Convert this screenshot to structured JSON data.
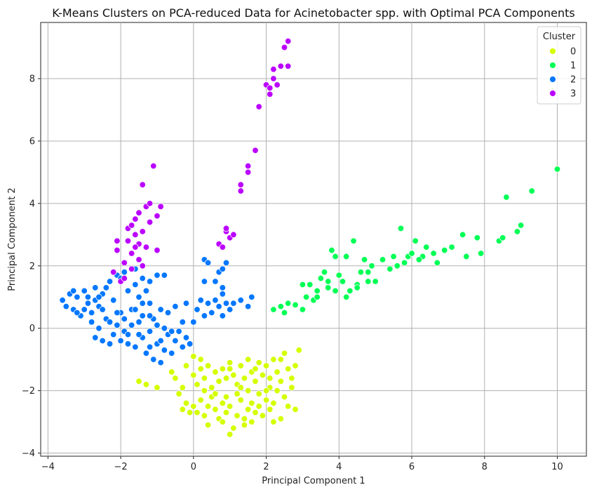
{
  "chart_data": {
    "type": "scatter",
    "title": "K-Means Clusters on PCA-reduced Data for Acinetobacter spp. with Optimal PCA Components",
    "xlabel": "Principal Component 1",
    "ylabel": "Principal Component 2",
    "xlim": [
      -4.2,
      10.8
    ],
    "ylim": [
      -4.1,
      9.8
    ],
    "xticks": [
      -4,
      -2,
      0,
      2,
      4,
      6,
      8,
      10
    ],
    "yticks": [
      -4,
      -2,
      0,
      2,
      4,
      6,
      8
    ],
    "grid": true,
    "legend": {
      "title": "Cluster",
      "placement": "top-right"
    },
    "series": [
      {
        "name": "0",
        "color": "#d4ff00",
        "points": [
          [
            -1.5,
            -1.7
          ],
          [
            -1.3,
            -1.8
          ],
          [
            -1.0,
            -1.9
          ],
          [
            -0.6,
            -1.4
          ],
          [
            -0.5,
            -1.6
          ],
          [
            -0.3,
            -1.9
          ],
          [
            -0.4,
            -2.1
          ],
          [
            -0.2,
            -2.4
          ],
          [
            -0.3,
            -2.6
          ],
          [
            -0.1,
            -2.7
          ],
          [
            0.0,
            -2.5
          ],
          [
            0.1,
            -2.7
          ],
          [
            0.2,
            -2.3
          ],
          [
            0.3,
            -2.8
          ],
          [
            0.4,
            -2.5
          ],
          [
            0.5,
            -2.2
          ],
          [
            0.6,
            -2.6
          ],
          [
            0.7,
            -2.9
          ],
          [
            0.8,
            -2.4
          ],
          [
            0.9,
            -2.7
          ],
          [
            1.0,
            -2.5
          ],
          [
            1.1,
            -3.2
          ],
          [
            1.0,
            -3.4
          ],
          [
            1.2,
            -2.8
          ],
          [
            1.3,
            -2.3
          ],
          [
            1.4,
            -2.9
          ],
          [
            1.5,
            -2.6
          ],
          [
            1.6,
            -2.4
          ],
          [
            1.7,
            -2.7
          ],
          [
            1.8,
            -2.5
          ],
          [
            1.9,
            -2.8
          ],
          [
            2.0,
            -2.3
          ],
          [
            2.1,
            -2.6
          ],
          [
            2.2,
            -2.4
          ],
          [
            2.4,
            -2.9
          ],
          [
            2.6,
            -2.5
          ],
          [
            2.8,
            -2.6
          ],
          [
            2.5,
            -2.2
          ],
          [
            2.3,
            -2.0
          ],
          [
            2.1,
            -1.9
          ],
          [
            0.0,
            -1.5
          ],
          [
            0.1,
            -1.8
          ],
          [
            0.2,
            -1.3
          ],
          [
            0.3,
            -1.6
          ],
          [
            0.4,
            -1.2
          ],
          [
            0.5,
            -1.9
          ],
          [
            0.6,
            -1.4
          ],
          [
            0.7,
            -1.7
          ],
          [
            0.8,
            -1.3
          ],
          [
            0.9,
            -1.6
          ],
          [
            1.0,
            -1.1
          ],
          [
            1.1,
            -1.5
          ],
          [
            1.2,
            -1.8
          ],
          [
            1.3,
            -1.2
          ],
          [
            1.4,
            -1.6
          ],
          [
            1.5,
            -1.0
          ],
          [
            1.6,
            -1.4
          ],
          [
            1.7,
            -1.7
          ],
          [
            1.8,
            -1.1
          ],
          [
            1.9,
            -1.5
          ],
          [
            2.0,
            -1.2
          ],
          [
            2.1,
            -1.6
          ],
          [
            2.2,
            -1.0
          ],
          [
            2.3,
            -1.4
          ],
          [
            2.4,
            -1.7
          ],
          [
            2.5,
            -0.8
          ],
          [
            2.6,
            -1.3
          ],
          [
            2.7,
            -1.6
          ],
          [
            2.9,
            -0.7
          ],
          [
            2.8,
            -1.2
          ],
          [
            0.3,
            -2.0
          ],
          [
            0.6,
            -2.1
          ],
          [
            0.9,
            -2.2
          ],
          [
            1.2,
            -2.1
          ],
          [
            1.5,
            -2.0
          ],
          [
            1.8,
            -2.1
          ],
          [
            2.0,
            -2.0
          ],
          [
            0.2,
            -1.0
          ],
          [
            0.0,
            -0.9
          ],
          [
            -0.2,
            -1.2
          ],
          [
            1.4,
            -3.1
          ],
          [
            1.6,
            -3.0
          ],
          [
            0.8,
            -3.0
          ],
          [
            0.4,
            -3.1
          ],
          [
            2.2,
            -3.0
          ],
          [
            2.7,
            -1.9
          ],
          [
            2.4,
            -1.0
          ],
          [
            1.0,
            -1.3
          ],
          [
            1.3,
            -1.9
          ],
          [
            1.7,
            -1.3
          ]
        ]
      },
      {
        "name": "1",
        "color": "#00ff55",
        "points": [
          [
            2.2,
            0.6
          ],
          [
            2.4,
            0.7
          ],
          [
            2.5,
            0.5
          ],
          [
            2.6,
            0.8
          ],
          [
            2.8,
            0.75
          ],
          [
            3.0,
            0.6
          ],
          [
            3.1,
            1.0
          ],
          [
            3.2,
            1.4
          ],
          [
            3.3,
            0.9
          ],
          [
            3.4,
            1.2
          ],
          [
            3.5,
            1.6
          ],
          [
            3.6,
            1.8
          ],
          [
            3.7,
            1.3
          ],
          [
            3.8,
            2.5
          ],
          [
            3.9,
            2.3
          ],
          [
            4.0,
            1.7
          ],
          [
            4.1,
            1.5
          ],
          [
            4.2,
            2.3
          ],
          [
            4.3,
            1.2
          ],
          [
            4.4,
            2.8
          ],
          [
            4.5,
            1.4
          ],
          [
            4.6,
            1.8
          ],
          [
            4.7,
            2.2
          ],
          [
            4.8,
            1.5
          ],
          [
            4.9,
            2.0
          ],
          [
            5.0,
            1.5
          ],
          [
            5.2,
            2.2
          ],
          [
            5.4,
            1.9
          ],
          [
            5.5,
            2.3
          ],
          [
            5.7,
            3.2
          ],
          [
            5.8,
            2.1
          ],
          [
            5.9,
            2.3
          ],
          [
            6.0,
            2.4
          ],
          [
            6.1,
            2.8
          ],
          [
            6.3,
            2.3
          ],
          [
            6.4,
            2.6
          ],
          [
            6.6,
            2.4
          ],
          [
            6.7,
            2.1
          ],
          [
            6.9,
            2.5
          ],
          [
            7.1,
            2.6
          ],
          [
            7.4,
            3.0
          ],
          [
            7.5,
            2.3
          ],
          [
            7.8,
            2.9
          ],
          [
            7.9,
            2.4
          ],
          [
            8.4,
            2.8
          ],
          [
            8.5,
            2.9
          ],
          [
            8.6,
            4.2
          ],
          [
            8.9,
            3.1
          ],
          [
            9.0,
            3.3
          ],
          [
            9.3,
            4.4
          ],
          [
            10.0,
            5.1
          ],
          [
            3.0,
            1.4
          ],
          [
            3.4,
            1.0
          ],
          [
            3.7,
            1.5
          ],
          [
            3.9,
            1.2
          ],
          [
            4.2,
            1.0
          ],
          [
            4.5,
            1.3
          ],
          [
            4.8,
            1.8
          ],
          [
            5.6,
            2.0
          ],
          [
            6.2,
            2.2
          ]
        ]
      },
      {
        "name": "2",
        "color": "#0077ff",
        "points": [
          [
            -3.6,
            0.9
          ],
          [
            -3.5,
            0.7
          ],
          [
            -3.4,
            1.1
          ],
          [
            -3.3,
            0.6
          ],
          [
            -3.2,
            1.0
          ],
          [
            -3.1,
            0.4
          ],
          [
            -3.0,
            1.2
          ],
          [
            -2.9,
            0.8
          ],
          [
            -2.8,
            0.5
          ],
          [
            -2.7,
            1.3
          ],
          [
            -2.6,
            0.7
          ],
          [
            -2.5,
            1.1
          ],
          [
            -2.4,
            0.3
          ],
          [
            -2.3,
            1.5
          ],
          [
            -2.2,
            0.9
          ],
          [
            -2.1,
            1.7
          ],
          [
            -2.0,
            0.5
          ],
          [
            -1.9,
            1.8
          ],
          [
            -1.8,
            1.2
          ],
          [
            -1.7,
            0.6
          ],
          [
            -1.6,
            1.4
          ],
          [
            -1.5,
            1.0
          ],
          [
            -1.4,
            0.4
          ],
          [
            -1.3,
            1.2
          ],
          [
            -1.2,
            0.8
          ],
          [
            -1.1,
            0.3
          ],
          [
            -1.0,
            1.7
          ],
          [
            -0.9,
            0.6
          ],
          [
            -0.8,
            0.0
          ],
          [
            -0.7,
            0.5
          ],
          [
            -3.0,
            0.6
          ],
          [
            -2.9,
            1.0
          ],
          [
            -2.8,
            0.2
          ],
          [
            -2.7,
            0.9
          ],
          [
            -2.6,
            0.0
          ],
          [
            -2.5,
            0.6
          ],
          [
            -2.4,
            1.3
          ],
          [
            -2.3,
            0.2
          ],
          [
            -2.2,
            -0.2
          ],
          [
            -2.1,
            0.5
          ],
          [
            -2.0,
            -0.4
          ],
          [
            -1.9,
            0.3
          ],
          [
            -1.8,
            -0.5
          ],
          [
            -1.7,
            0.1
          ],
          [
            -1.6,
            -0.6
          ],
          [
            -1.5,
            0.2
          ],
          [
            -1.4,
            -0.3
          ],
          [
            -1.3,
            -0.8
          ],
          [
            -1.2,
            -0.1
          ],
          [
            -1.1,
            -1.0
          ],
          [
            -1.0,
            -0.5
          ],
          [
            -0.9,
            -1.1
          ],
          [
            -0.8,
            -0.7
          ],
          [
            -0.7,
            -0.2
          ],
          [
            -0.6,
            -0.8
          ],
          [
            -0.5,
            -0.4
          ],
          [
            -0.4,
            -0.1
          ],
          [
            -0.3,
            -0.6
          ],
          [
            -0.2,
            -0.3
          ],
          [
            -0.1,
            -0.5
          ],
          [
            0.0,
            0.2
          ],
          [
            0.1,
            0.6
          ],
          [
            0.2,
            0.9
          ],
          [
            0.3,
            0.4
          ],
          [
            0.4,
            0.8
          ],
          [
            0.5,
            0.5
          ],
          [
            0.6,
            0.9
          ],
          [
            0.7,
            0.7
          ],
          [
            0.8,
            0.4
          ],
          [
            0.9,
            0.8
          ],
          [
            1.0,
            0.6
          ],
          [
            1.1,
            0.8
          ],
          [
            1.3,
            0.9
          ],
          [
            1.5,
            0.7
          ],
          [
            1.6,
            1.0
          ],
          [
            0.3,
            1.5
          ],
          [
            0.3,
            2.2
          ],
          [
            0.4,
            2.1
          ],
          [
            0.7,
            1.8
          ],
          [
            0.8,
            1.9
          ],
          [
            0.8,
            1.3
          ],
          [
            0.8,
            1.1
          ],
          [
            0.9,
            2.1
          ],
          [
            0.6,
            1.5
          ],
          [
            -1.4,
            1.6
          ],
          [
            -1.2,
            1.5
          ],
          [
            -0.8,
            1.7
          ],
          [
            -2.2,
            1.8
          ],
          [
            -2.0,
            1.6
          ],
          [
            -1.6,
            1.9
          ],
          [
            -3.2,
            0.5
          ],
          [
            -3.3,
            1.2
          ],
          [
            -2.6,
            1.0
          ],
          [
            -2.1,
            0.1
          ],
          [
            -1.9,
            -0.1
          ],
          [
            -1.5,
            -0.2
          ],
          [
            -1.2,
            -0.6
          ],
          [
            -0.9,
            -0.4
          ],
          [
            -0.6,
            -0.1
          ],
          [
            -0.3,
            0.2
          ],
          [
            -2.5,
            -0.4
          ],
          [
            -2.3,
            -0.5
          ],
          [
            -1.8,
            -0.2
          ],
          [
            -1.6,
            0.6
          ],
          [
            -1.4,
            0.8
          ],
          [
            -1.2,
            0.4
          ],
          [
            -1.0,
            0.1
          ],
          [
            -2.7,
            -0.3
          ],
          [
            -0.5,
            0.7
          ],
          [
            -0.2,
            0.8
          ]
        ]
      },
      {
        "name": "3",
        "color": "#bb00ff",
        "points": [
          [
            -2.2,
            1.8
          ],
          [
            -2.0,
            1.5
          ],
          [
            -2.1,
            2.5
          ],
          [
            -1.9,
            2.1
          ],
          [
            -1.8,
            2.8
          ],
          [
            -1.8,
            3.2
          ],
          [
            -1.7,
            2.4
          ],
          [
            -1.6,
            3.0
          ],
          [
            -1.6,
            3.5
          ],
          [
            -1.5,
            2.7
          ],
          [
            -1.5,
            2.2
          ],
          [
            -1.4,
            4.6
          ],
          [
            -1.4,
            3.1
          ],
          [
            -1.3,
            3.9
          ],
          [
            -1.3,
            2.6
          ],
          [
            -1.2,
            3.4
          ],
          [
            -1.1,
            5.2
          ],
          [
            -1.0,
            3.6
          ],
          [
            -1.0,
            2.5
          ],
          [
            -0.9,
            3.9
          ],
          [
            -1.7,
            1.9
          ],
          [
            -1.9,
            1.6
          ],
          [
            -1.4,
            2.0
          ],
          [
            0.7,
            2.7
          ],
          [
            0.8,
            2.6
          ],
          [
            0.9,
            3.1
          ],
          [
            1.0,
            2.9
          ],
          [
            1.1,
            3.0
          ],
          [
            1.3,
            4.6
          ],
          [
            1.3,
            4.4
          ],
          [
            1.5,
            5.0
          ],
          [
            1.5,
            5.2
          ],
          [
            1.7,
            5.7
          ],
          [
            1.8,
            7.1
          ],
          [
            2.0,
            7.8
          ],
          [
            2.1,
            7.5
          ],
          [
            2.1,
            7.7
          ],
          [
            2.2,
            8.0
          ],
          [
            2.2,
            8.3
          ],
          [
            2.3,
            7.8
          ],
          [
            2.4,
            8.4
          ],
          [
            2.5,
            9.0
          ],
          [
            2.6,
            8.4
          ],
          [
            2.6,
            9.2
          ],
          [
            -2.1,
            2.8
          ],
          [
            -1.7,
            3.3
          ],
          [
            -1.5,
            3.7
          ],
          [
            -1.2,
            4.0
          ],
          [
            -1.6,
            2.6
          ],
          [
            0.9,
            3.2
          ]
        ]
      }
    ]
  }
}
